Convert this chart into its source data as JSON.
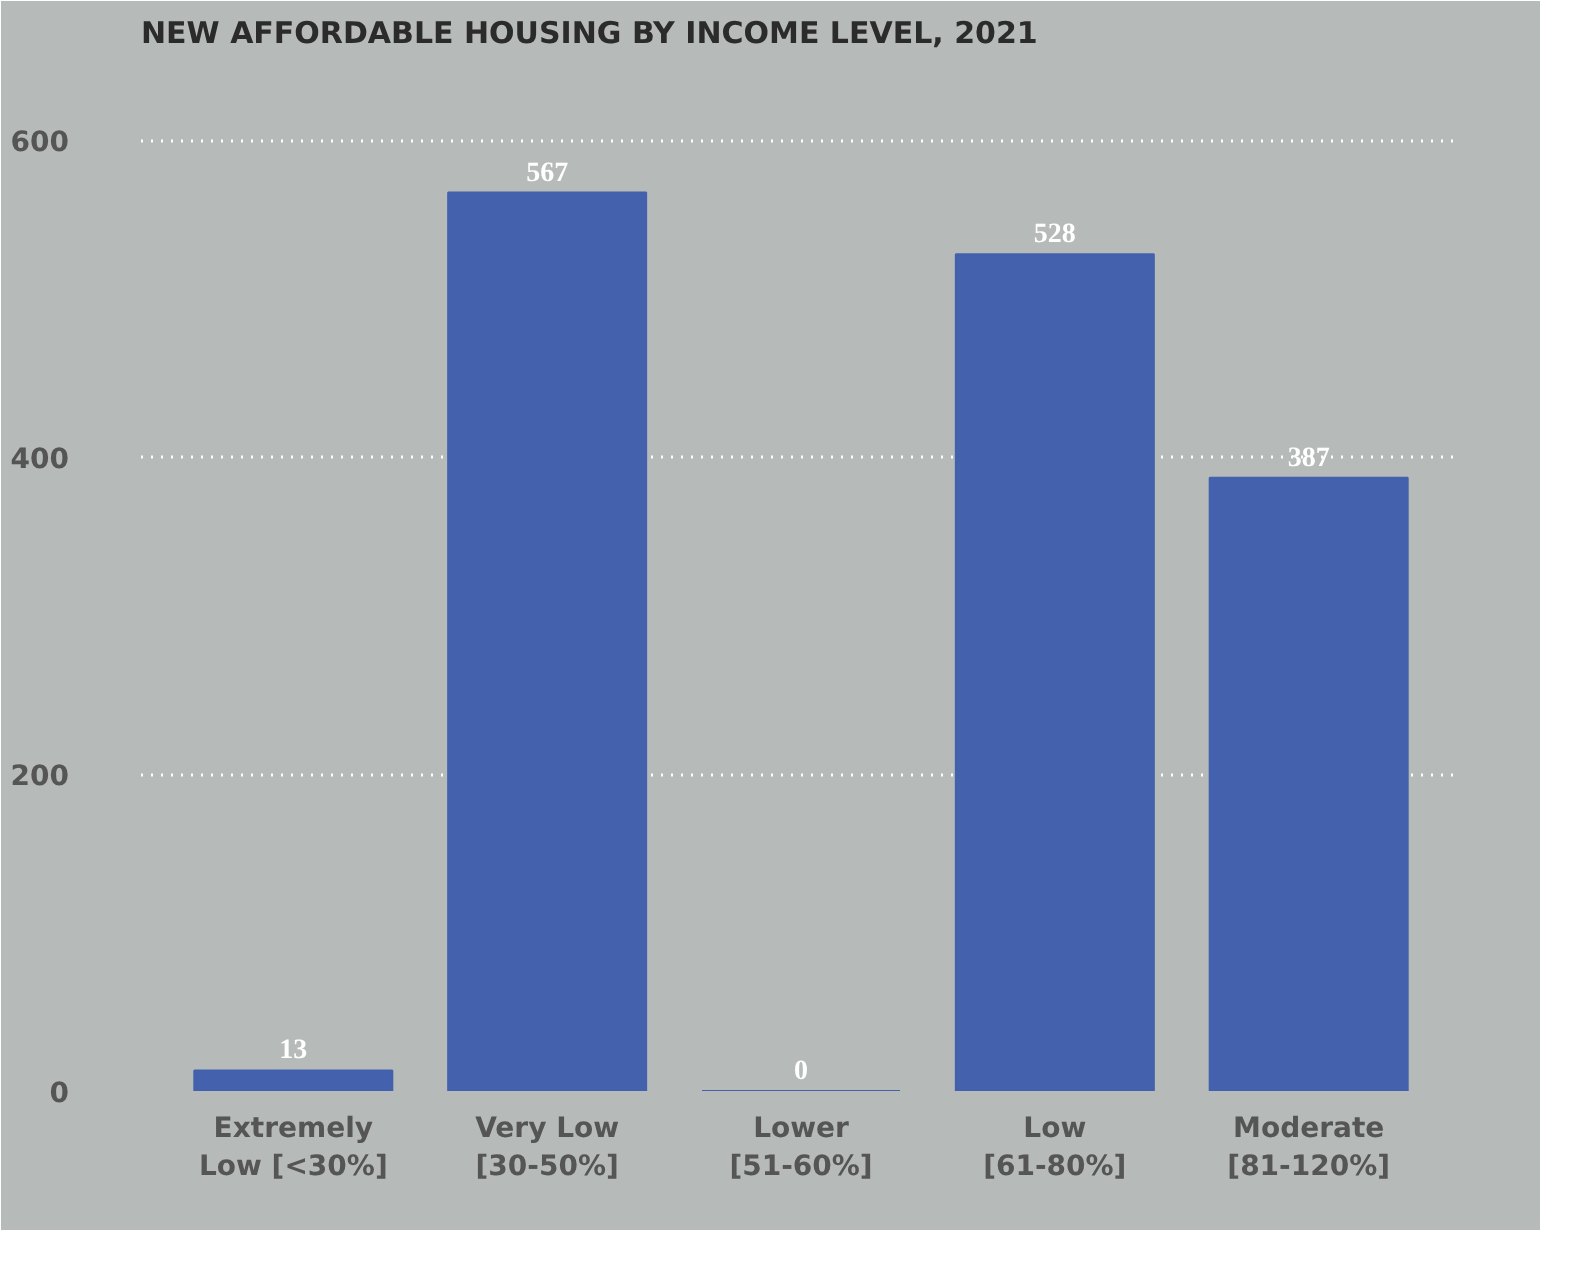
{
  "chart_data": {
    "type": "bar",
    "title": "NEW AFFORDABLE HOUSING BY INCOME LEVEL, 2021",
    "categories": [
      "Extremely Low [<30%]",
      "Very Low [30-50%]",
      "Lower [51-60%]",
      "Low [61-80%]",
      "Moderate [81-120%]"
    ],
    "values": [
      13,
      567,
      0,
      528,
      387
    ],
    "color": "#4361ad",
    "ylim": [
      0,
      650
    ],
    "yticks": [
      0,
      200,
      400,
      600
    ],
    "grid": "y",
    "data_labels": true
  }
}
